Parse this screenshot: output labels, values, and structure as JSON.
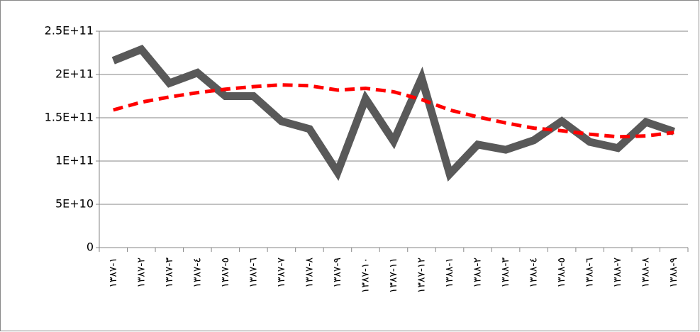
{
  "chart_data": {
    "type": "line",
    "categories": [
      "١-١٣٨٧",
      "٢-١٣٨٧",
      "٣-١٣٨٧",
      "٤-١٣٨٧",
      "٥-١٣٨٧",
      "٦-١٣٨٧",
      "٧-١٣٨٧",
      "٨-١٣٨٧",
      "٩-١٣٨٧",
      "١٠-١٣٨٧",
      "١١-١٣٨٧",
      "١٢-١٣٨٧",
      "١-١٣٨٨",
      "٢-١٣٨٨",
      "٣-١٣٨٨",
      "٤-١٣٨٨",
      "٥-١٣٨٨",
      "٦-١٣٨٨",
      "٧-١٣٨٨",
      "٨-١٣٨٨",
      "٩-١٣٨٨"
    ],
    "series": [
      {
        "color": "#595959",
        "values": [
          216000000000,
          229000000000,
          190000000000,
          202000000000,
          175000000000,
          175000000000,
          146000000000,
          137000000000,
          87000000000,
          172000000000,
          123000000000,
          196000000000,
          85000000000,
          119000000000,
          113000000000,
          124000000000,
          146000000000,
          122000000000,
          115000000000,
          145000000000,
          134000000000
        ]
      },
      {
        "color": "#ff0000",
        "dashed": true,
        "values": [
          159000000000,
          168000000000,
          174000000000,
          179000000000,
          183000000000,
          186000000000,
          188000000000,
          187000000000,
          182000000000,
          184000000000,
          180000000000,
          171000000000,
          159000000000,
          151000000000,
          144000000000,
          138000000000,
          135000000000,
          131000000000,
          128000000000,
          129000000000,
          133000000000
        ]
      }
    ],
    "ylim": [
      0,
      250000000000
    ],
    "yticks": [
      0,
      {
        "value": 50000000000,
        "label": "5E+10"
      },
      {
        "value": 100000000000,
        "label": "1E+11"
      },
      {
        "value": 150000000000,
        "label": "1.5E+11"
      },
      {
        "value": 200000000000,
        "label": "2E+11"
      },
      {
        "value": 250000000000,
        "label": "2.5E+11"
      }
    ],
    "grid": true
  }
}
